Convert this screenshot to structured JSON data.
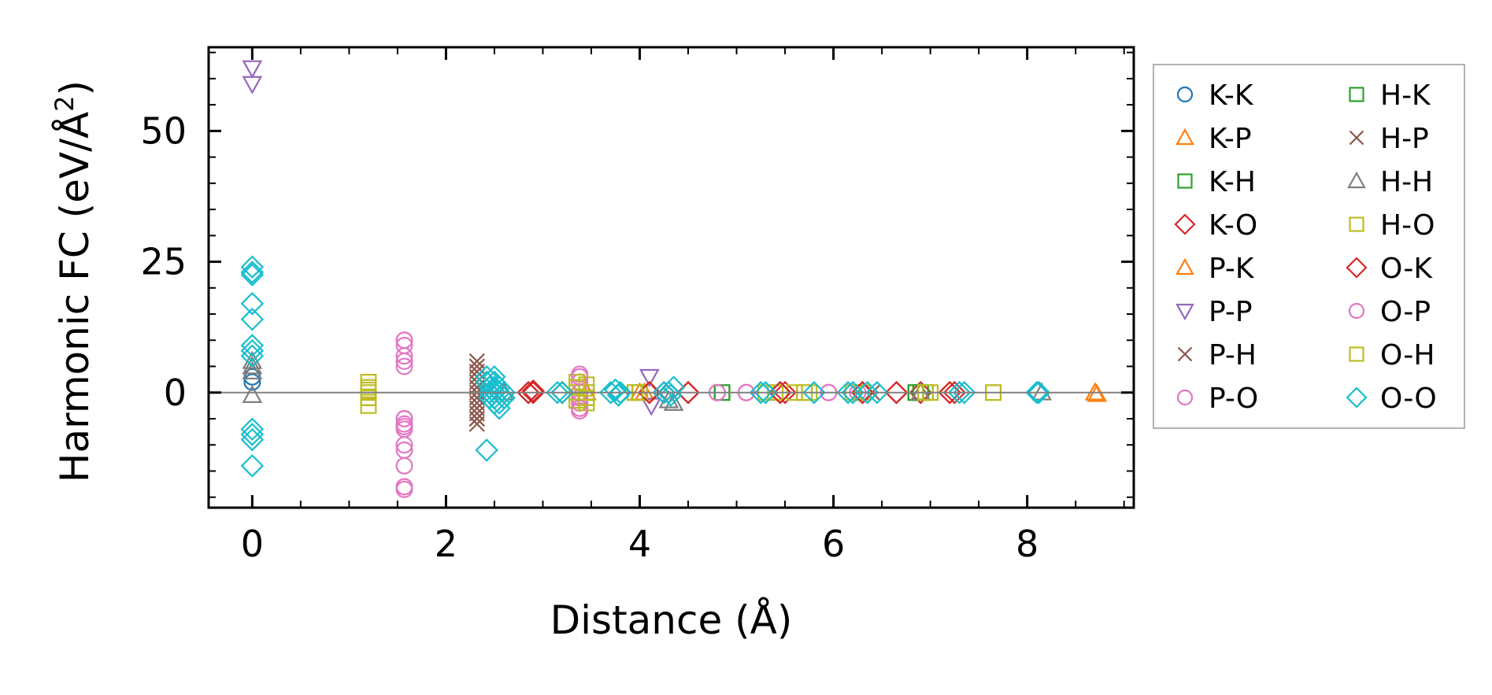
{
  "chart_data": {
    "type": "scatter",
    "xlabel": "Distance (Å)",
    "ylabel_parts": {
      "main": "Harmonic FC (eV/Å",
      "sup": "2",
      "end": ")"
    },
    "xlim": [
      -0.45,
      9.1
    ],
    "ylim": [
      -22,
      66
    ],
    "xticks": [
      0,
      2,
      4,
      6,
      8
    ],
    "xtick_labels": [
      "0",
      "2",
      "4",
      "6",
      "8"
    ],
    "yticks": [
      0,
      25,
      50
    ],
    "ytick_labels": [
      "0",
      "25",
      "50"
    ],
    "zero_line": true,
    "grid": false,
    "legend_position": "outside-right",
    "legend_columns": 2,
    "series": [
      {
        "name": "K-K",
        "marker": "circle",
        "color": "#1f77b4",
        "x": [
          0,
          0
        ],
        "y": [
          2,
          3
        ]
      },
      {
        "name": "K-P",
        "marker": "triangle-up",
        "color": "#ff7f0e",
        "x": [
          3.45,
          4.0,
          6.9,
          8.7,
          8.72
        ],
        "y": [
          0,
          0,
          0,
          0,
          -0.3
        ]
      },
      {
        "name": "K-H",
        "marker": "square",
        "color": "#2ca02c",
        "x": [
          3.45,
          4.0,
          4.85,
          6.85,
          6.9
        ],
        "y": [
          0,
          0,
          0,
          0,
          0
        ]
      },
      {
        "name": "K-O",
        "marker": "diamond",
        "color": "#d62728",
        "x": [
          2.85,
          2.9,
          3.2,
          4.1,
          4.25,
          4.5,
          5.45,
          5.5,
          6.3,
          6.65,
          6.9,
          7.2,
          7.25
        ],
        "y": [
          0,
          0.3,
          0,
          0,
          0,
          0,
          0,
          0,
          0,
          0,
          0,
          0,
          0
        ]
      },
      {
        "name": "P-K",
        "marker": "triangle-up",
        "color": "#ff7f0e",
        "x": [
          3.45,
          4.05,
          6.9,
          8.7
        ],
        "y": [
          0,
          0,
          0,
          0
        ]
      },
      {
        "name": "P-P",
        "marker": "triangle-down",
        "color": "#9467bd",
        "x": [
          0,
          0,
          4.1,
          4.12
        ],
        "y": [
          62,
          59,
          3,
          -2.5
        ]
      },
      {
        "name": "P-H",
        "marker": "x",
        "color": "#8c564b",
        "x": [
          2.32,
          2.32,
          2.32,
          2.32,
          2.32,
          2.32,
          2.32,
          2.32,
          4.2,
          6.4
        ],
        "y": [
          6,
          4,
          2,
          0,
          -1,
          -3,
          -5,
          -6,
          0,
          0
        ]
      },
      {
        "name": "P-O",
        "marker": "circle",
        "color": "#e377c2",
        "x": [
          1.57,
          1.57,
          1.57,
          1.57,
          1.57,
          1.57,
          1.57,
          1.57,
          1.57,
          1.57,
          1.57,
          1.57,
          1.57,
          1.57,
          3.38,
          3.38,
          3.38,
          3.38,
          3.38,
          3.38,
          4.8,
          5.1,
          5.95,
          6.25
        ],
        "y": [
          10,
          9,
          7,
          6,
          5,
          -5,
          -6,
          -7,
          -10,
          -11,
          -14,
          -18,
          -18.5,
          -6.5,
          3.5,
          2,
          0,
          -1,
          -2,
          -3.5,
          0,
          0,
          0,
          0
        ]
      },
      {
        "name": "H-K",
        "marker": "square",
        "color": "#2ca02c",
        "x": [
          4.85,
          6.85,
          6.9
        ],
        "y": [
          0,
          0,
          0
        ]
      },
      {
        "name": "H-P",
        "marker": "x",
        "color": "#8c564b",
        "x": [
          2.32,
          2.32,
          2.32,
          2.32,
          2.32,
          2.32,
          4.2
        ],
        "y": [
          5,
          3,
          1,
          -2,
          -4,
          -5,
          0
        ]
      },
      {
        "name": "H-H",
        "marker": "triangle-up",
        "color": "#7f7f7f",
        "x": [
          0,
          0,
          0,
          0,
          2.6,
          4.3,
          4.35,
          6.9,
          8.15
        ],
        "y": [
          6,
          5,
          4,
          -0.5,
          0,
          -1.5,
          -2,
          0,
          0
        ]
      },
      {
        "name": "H-O",
        "marker": "square",
        "color": "#bcbd22",
        "x": [
          1.2,
          1.2,
          1.2,
          1.2,
          1.2,
          3.35,
          3.35,
          3.35,
          3.45,
          3.45,
          3.45,
          3.45,
          3.95,
          4.0,
          5.3,
          5.4,
          5.6,
          5.7,
          5.75,
          6.2,
          6.3,
          6.95,
          7.0,
          7.65
        ],
        "y": [
          2,
          0.5,
          0,
          -1,
          -2.5,
          2,
          0,
          -1.5,
          1.5,
          0,
          -1,
          -2,
          0,
          0,
          0,
          0,
          0,
          0,
          0,
          0,
          0,
          0,
          0,
          0
        ]
      },
      {
        "name": "O-K",
        "marker": "diamond",
        "color": "#d62728",
        "x": [
          2.85,
          2.9,
          3.2,
          4.1,
          4.25,
          4.5,
          5.45,
          6.3,
          6.65,
          7.2
        ],
        "y": [
          0,
          0,
          0,
          0,
          0,
          0,
          0,
          0,
          0,
          0
        ]
      },
      {
        "name": "O-P",
        "marker": "circle",
        "color": "#e377c2",
        "x": [
          1.57,
          1.57,
          1.57,
          3.38,
          3.38,
          4.8,
          5.1,
          5.95
        ],
        "y": [
          10,
          -5,
          -18,
          3,
          -3,
          0,
          0,
          0
        ]
      },
      {
        "name": "O-H",
        "marker": "square",
        "color": "#bcbd22",
        "x": [
          1.2,
          1.2,
          3.35,
          3.45,
          3.95,
          5.7,
          6.95,
          7.65
        ],
        "y": [
          1,
          -1,
          1,
          -1,
          0,
          0,
          0,
          0
        ]
      },
      {
        "name": "O-O",
        "marker": "diamond",
        "color": "#17becf",
        "x": [
          0,
          0,
          0,
          0,
          0,
          0,
          0,
          0,
          0,
          0,
          0,
          0,
          2.42,
          2.42,
          2.42,
          2.45,
          2.45,
          2.45,
          2.5,
          2.5,
          2.5,
          2.5,
          2.5,
          2.5,
          2.55,
          2.55,
          2.55,
          2.55,
          2.6,
          2.6,
          3.15,
          3.2,
          3.7,
          3.75,
          3.8,
          3.78,
          4.25,
          4.3,
          4.35,
          4.32,
          5.25,
          5.3,
          5.8,
          6.15,
          6.2,
          6.35,
          6.45,
          7.3,
          7.35,
          8.1,
          8.12
        ],
        "y": [
          24,
          23,
          22.5,
          17,
          14,
          9,
          8,
          7,
          -7,
          -8,
          -9,
          -14,
          -11,
          3,
          2,
          1,
          0,
          -1,
          -2,
          3,
          2,
          1,
          0,
          -1,
          -2,
          -3,
          1,
          0,
          -1,
          0,
          0,
          0,
          0,
          0.5,
          0,
          -0.5,
          0,
          0,
          1,
          -0.5,
          0,
          0,
          0,
          0,
          0,
          0,
          0,
          0,
          0,
          0,
          0
        ]
      }
    ]
  }
}
